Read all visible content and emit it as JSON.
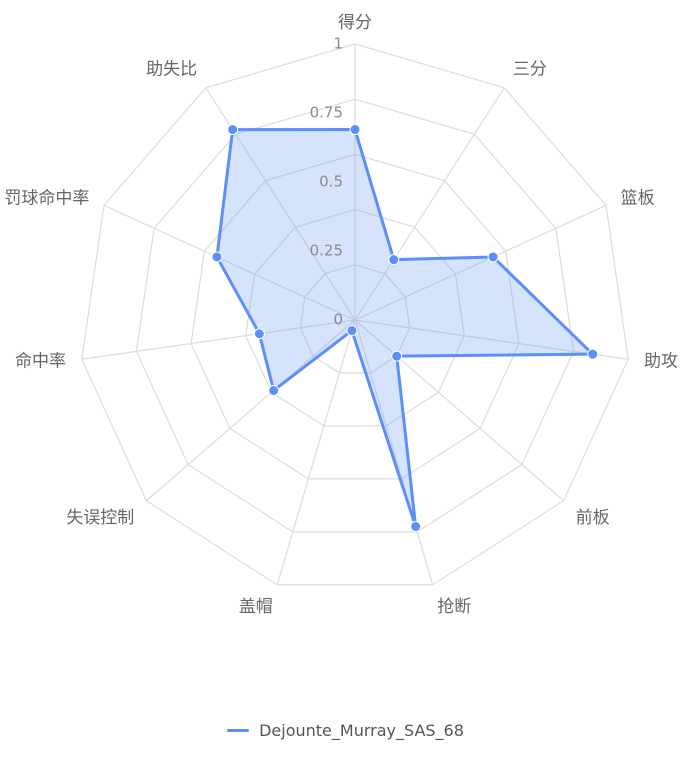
{
  "chart_data": {
    "type": "radar",
    "indicators": [
      "得分",
      "三分",
      "篮板",
      "助攻",
      "前板",
      "抢断",
      "盖帽",
      "失误控制",
      "命中率",
      "罚球命中率",
      "助失比"
    ],
    "ticks": [
      "0",
      "0.25",
      "0.5",
      "0.75",
      "1"
    ],
    "range": [
      0,
      1
    ],
    "series": [
      {
        "name": "Dejounte_Murray_SAS_68",
        "values": [
          0.69,
          0.26,
          0.55,
          0.87,
          0.2,
          0.78,
          0.04,
          0.39,
          0.35,
          0.55,
          0.82
        ]
      }
    ],
    "colors": {
      "series": "#5b8ff9",
      "fill": "#5b8ff9",
      "grid": "#dcdcdc",
      "label": "#666666"
    },
    "legend_position": "bottom"
  }
}
